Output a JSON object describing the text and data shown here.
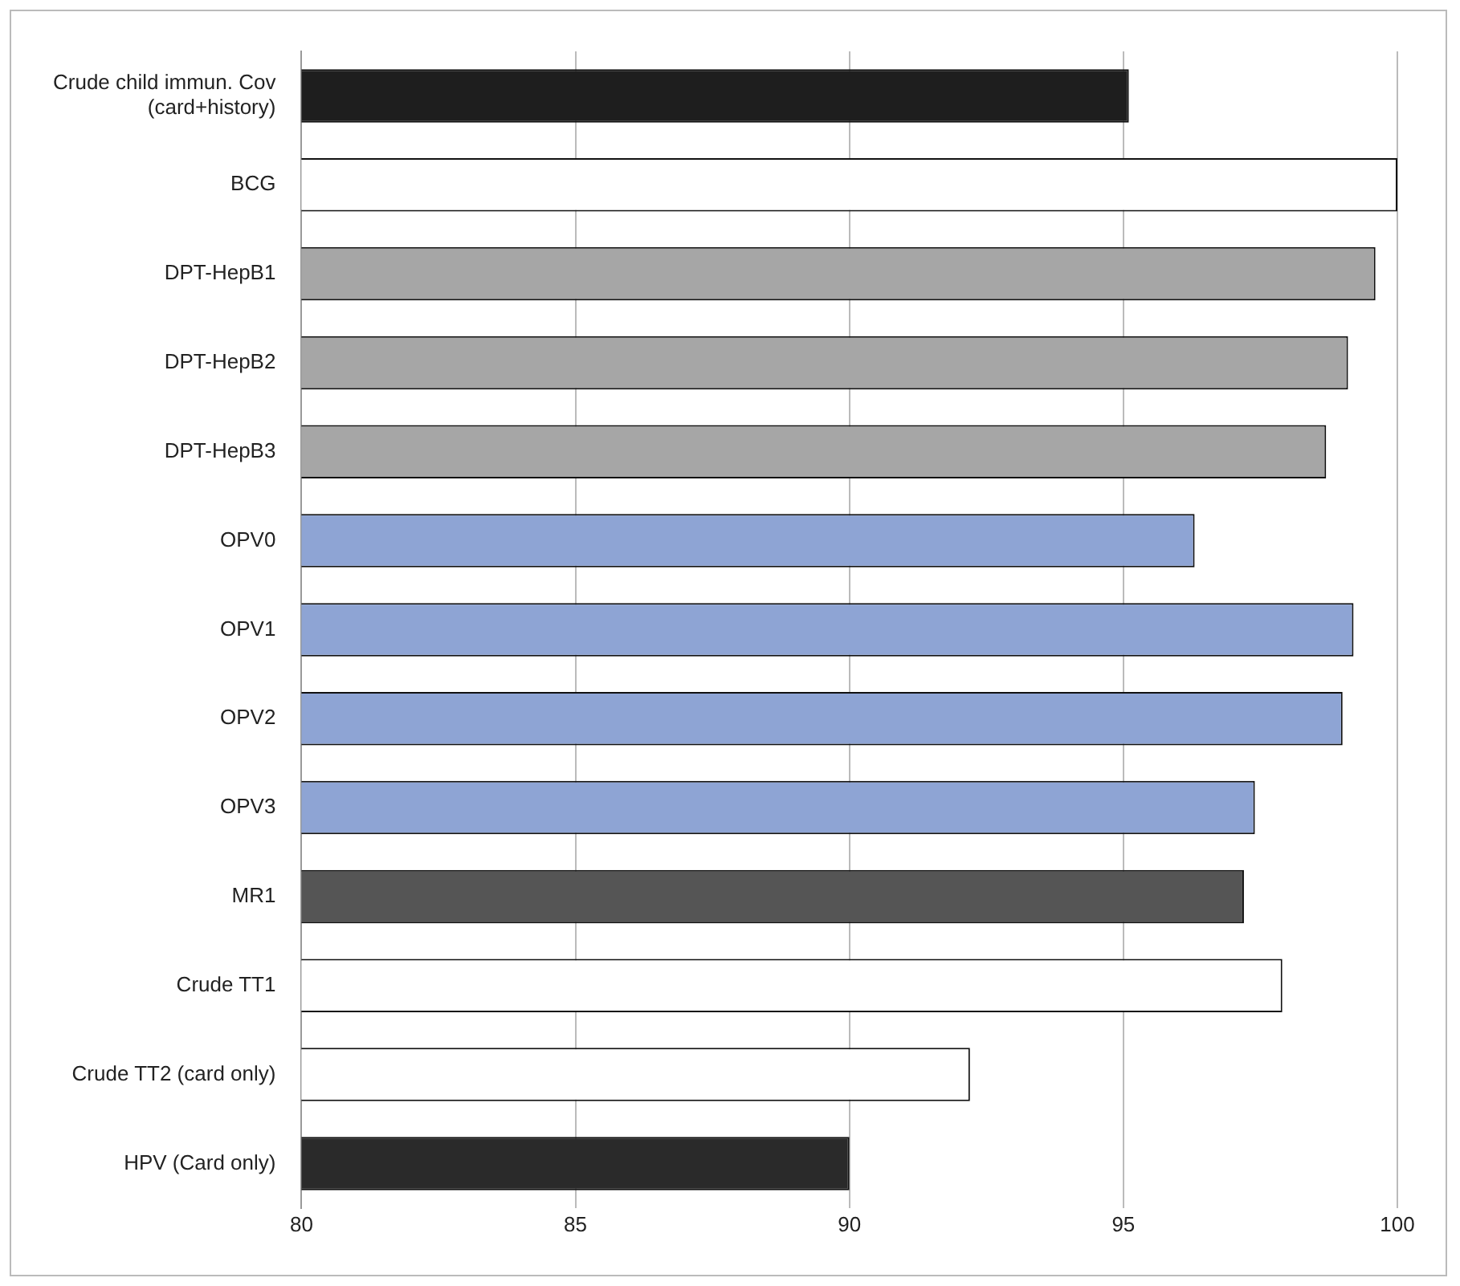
{
  "chart_data": {
    "type": "bar",
    "orientation": "horizontal",
    "categories": [
      "Crude child immun. Cov (card+history)",
      "BCG",
      "DPT-HepB1",
      "DPT-HepB2",
      "DPT-HepB3",
      "OPV0",
      "OPV1",
      "OPV2",
      "OPV3",
      "MR1",
      "Crude TT1",
      "Crude TT2 (card only)",
      "HPV (Card only)"
    ],
    "values": [
      95.1,
      100,
      99.6,
      99.1,
      98.7,
      96.3,
      99.2,
      99.0,
      97.4,
      97.2,
      97.9,
      92.2,
      90.0
    ],
    "colors": [
      "#1e1e1e",
      "#ffffff",
      "#a6a6a6",
      "#a6a6a6",
      "#a6a6a6",
      "#8ea4d4",
      "#8ea4d4",
      "#8ea4d4",
      "#8ea4d4",
      "#555555",
      "#ffffff",
      "#ffffff",
      "#2a2a2a"
    ],
    "xlim": [
      80,
      100
    ],
    "xticks": [
      80,
      85,
      90,
      95,
      100
    ],
    "grid": "x"
  }
}
